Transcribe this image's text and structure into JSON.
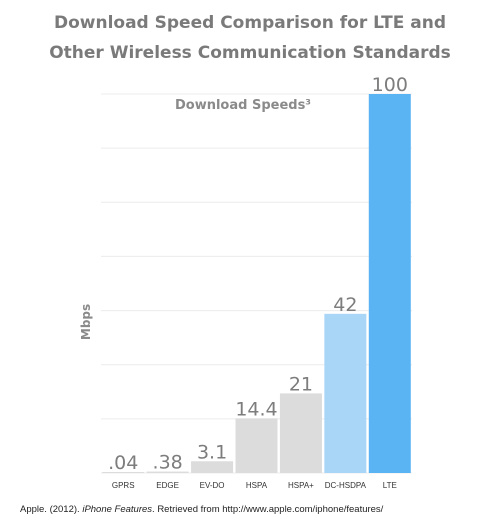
{
  "title_line1": "Download Speed Comparison for LTE and",
  "title_line2": "Other Wireless Communication Standards",
  "chart_data": {
    "type": "bar",
    "subtitle": "Download Speeds³",
    "ylabel": "Mbps",
    "xlabel": "",
    "ylim": [
      0,
      100
    ],
    "grid": true,
    "categories": [
      "GPRS",
      "EDGE",
      "EV-DO",
      "HSPA",
      "HSPA+",
      "DC-HSDPA",
      "LTE"
    ],
    "values": [
      0.04,
      0.38,
      3.1,
      14.4,
      21,
      42,
      100
    ],
    "value_labels": [
      ".04",
      ".38",
      "3.1",
      "14.4",
      "21",
      "42",
      "100"
    ],
    "colors": [
      "#dcdcdc",
      "#dcdcdc",
      "#dcdcdc",
      "#dcdcdc",
      "#dcdcdc",
      "#a9d6f7",
      "#5ab3f3"
    ]
  },
  "footer": {
    "prefix": "Apple. (2012). ",
    "italic": "iPhone Features",
    "suffix": ". Retrieved from http://www.apple.com/iphone/features/"
  }
}
